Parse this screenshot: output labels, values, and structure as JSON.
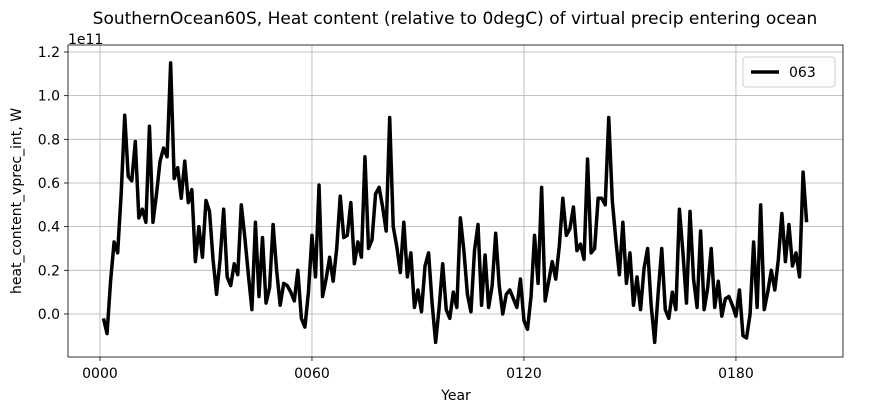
{
  "chart_data": {
    "type": "line",
    "title": "SouthernOcean60S, Heat content (relative to 0degC) of virtual precip entering ocean",
    "xlabel": "Year",
    "ylabel": "heat_content_vprec_int, W",
    "offset_label": "1e11",
    "x": [
      1,
      2,
      3,
      4,
      5,
      6,
      7,
      8,
      9,
      10,
      11,
      12,
      13,
      14,
      15,
      16,
      17,
      18,
      19,
      20,
      21,
      22,
      23,
      24,
      25,
      26,
      27,
      28,
      29,
      30,
      31,
      32,
      33,
      34,
      35,
      36,
      37,
      38,
      39,
      40,
      41,
      42,
      43,
      44,
      45,
      46,
      47,
      48,
      49,
      50,
      51,
      52,
      53,
      54,
      55,
      56,
      57,
      58,
      59,
      60,
      61,
      62,
      63,
      64,
      65,
      66,
      67,
      68,
      69,
      70,
      71,
      72,
      73,
      74,
      75,
      76,
      77,
      78,
      79,
      80,
      81,
      82,
      83,
      84,
      85,
      86,
      87,
      88,
      89,
      90,
      91,
      92,
      93,
      94,
      95,
      96,
      97,
      98,
      99,
      100,
      101,
      102,
      103,
      104,
      105,
      106,
      107,
      108,
      109,
      110,
      111,
      112,
      113,
      114,
      115,
      116,
      117,
      118,
      119,
      120,
      121,
      122,
      123,
      124,
      125,
      126,
      127,
      128,
      129,
      130,
      131,
      132,
      133,
      134,
      135,
      136,
      137,
      138,
      139,
      140,
      141,
      142,
      143,
      144,
      145,
      146,
      147,
      148,
      149,
      150,
      151,
      152,
      153,
      154,
      155,
      156,
      157,
      158,
      159,
      160,
      161,
      162,
      163,
      164,
      165,
      166,
      167,
      168,
      169,
      170,
      171,
      172,
      173,
      174,
      175,
      176,
      177,
      178,
      179,
      180,
      181,
      182,
      183,
      184,
      185,
      186,
      187,
      188,
      189,
      190,
      191,
      192,
      193,
      194,
      195,
      196,
      197,
      198,
      199,
      200
    ],
    "series": [
      {
        "name": "063",
        "color": "#000000",
        "values": [
          -0.02,
          -0.09,
          0.15,
          0.33,
          0.28,
          0.55,
          0.91,
          0.63,
          0.61,
          0.79,
          0.44,
          0.48,
          0.42,
          0.86,
          0.42,
          0.55,
          0.7,
          0.76,
          0.72,
          1.15,
          0.62,
          0.67,
          0.53,
          0.7,
          0.51,
          0.57,
          0.24,
          0.4,
          0.26,
          0.52,
          0.47,
          0.25,
          0.09,
          0.25,
          0.48,
          0.17,
          0.13,
          0.23,
          0.18,
          0.5,
          0.35,
          0.18,
          0.02,
          0.42,
          0.08,
          0.35,
          0.05,
          0.12,
          0.41,
          0.2,
          0.04,
          0.14,
          0.13,
          0.1,
          0.06,
          0.2,
          -0.02,
          -0.06,
          0.1,
          0.36,
          0.17,
          0.59,
          0.08,
          0.16,
          0.26,
          0.15,
          0.3,
          0.54,
          0.35,
          0.36,
          0.51,
          0.23,
          0.33,
          0.26,
          0.72,
          0.3,
          0.34,
          0.55,
          0.58,
          0.49,
          0.38,
          0.9,
          0.4,
          0.31,
          0.19,
          0.42,
          0.17,
          0.28,
          0.03,
          0.11,
          0.01,
          0.22,
          0.28,
          0.05,
          -0.13,
          0.03,
          0.23,
          0.02,
          -0.02,
          0.1,
          0.03,
          0.44,
          0.29,
          0.09,
          0.01,
          0.29,
          0.41,
          0.04,
          0.27,
          0.03,
          0.13,
          0.37,
          0.13,
          0.0,
          0.09,
          0.11,
          0.07,
          0.03,
          0.16,
          -0.03,
          -0.07,
          0.08,
          0.36,
          0.14,
          0.58,
          0.06,
          0.15,
          0.24,
          0.16,
          0.31,
          0.53,
          0.36,
          0.39,
          0.49,
          0.29,
          0.32,
          0.25,
          0.71,
          0.28,
          0.3,
          0.53,
          0.53,
          0.5,
          0.9,
          0.52,
          0.34,
          0.18,
          0.42,
          0.14,
          0.28,
          0.04,
          0.17,
          0.02,
          0.21,
          0.3,
          0.04,
          -0.13,
          0.1,
          0.3,
          0.02,
          -0.02,
          0.1,
          0.02,
          0.48,
          0.28,
          0.05,
          0.47,
          0.16,
          0.03,
          0.38,
          0.02,
          0.12,
          0.3,
          0.03,
          0.15,
          -0.01,
          0.07,
          0.08,
          0.04,
          -0.01,
          0.11,
          -0.1,
          -0.11,
          0.0,
          0.33,
          0.03,
          0.5,
          0.02,
          0.1,
          0.2,
          0.11,
          0.25,
          0.46,
          0.24,
          0.41,
          0.22,
          0.28,
          0.17,
          0.65,
          0.42
        ]
      }
    ],
    "xlim": [
      -9.05,
      210.3
    ],
    "xticks": [
      {
        "value": 0,
        "label": "0000"
      },
      {
        "value": 60,
        "label": "0060"
      },
      {
        "value": 120,
        "label": "0120"
      },
      {
        "value": 180,
        "label": "0180"
      }
    ],
    "ylim": [
      -0.197,
      1.232
    ],
    "yticks": [
      {
        "value": 0,
        "label": "0.0"
      },
      0.2,
      0.4,
      0.6,
      0.8,
      {
        "value": 1,
        "label": "1.0"
      },
      1.2
    ],
    "grid": true,
    "legend": "upper right"
  }
}
